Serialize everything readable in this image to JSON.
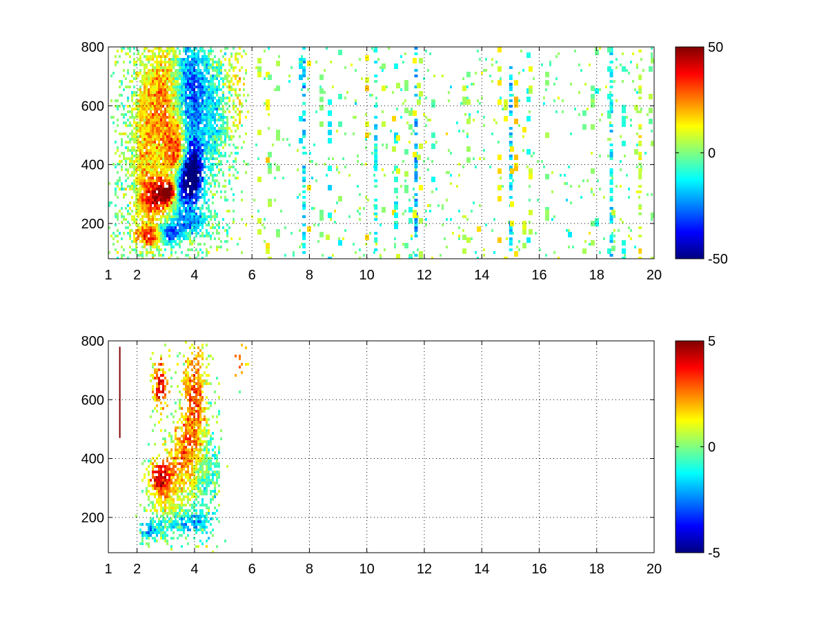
{
  "chart_data": [
    {
      "type": "heatmap",
      "title": "",
      "xlabel": "",
      "ylabel": "",
      "xlim": [
        1,
        20
      ],
      "ylim": [
        80,
        800
      ],
      "xticks": [
        1,
        2,
        4,
        6,
        8,
        10,
        12,
        14,
        16,
        18,
        20
      ],
      "yticks": [
        200,
        400,
        600,
        800
      ],
      "grid": true,
      "colormap": "jet",
      "colorbar": {
        "range": [
          -50,
          50
        ],
        "ticks": [
          -50,
          0,
          50
        ]
      },
      "blobs": [
        {
          "x": 2.5,
          "y": 160,
          "value": 35,
          "sx": 0.35,
          "sy": 25
        },
        {
          "x": 3.1,
          "y": 165,
          "value": -40,
          "sx": 0.3,
          "sy": 20
        },
        {
          "x": 3.8,
          "y": 200,
          "value": -20,
          "sx": 0.5,
          "sy": 30
        },
        {
          "x": 2.7,
          "y": 290,
          "value": 40,
          "sx": 0.35,
          "sy": 40
        },
        {
          "x": 3.1,
          "y": 310,
          "value": 45,
          "sx": 0.2,
          "sy": 25
        },
        {
          "x": 3.6,
          "y": 340,
          "value": -50,
          "sx": 0.3,
          "sy": 60
        },
        {
          "x": 4.0,
          "y": 380,
          "value": -45,
          "sx": 0.25,
          "sy": 70
        },
        {
          "x": 3.4,
          "y": 420,
          "value": 35,
          "sx": 0.25,
          "sy": 70
        },
        {
          "x": 3.0,
          "y": 600,
          "value": 25,
          "sx": 0.4,
          "sy": 150
        },
        {
          "x": 3.9,
          "y": 650,
          "value": -30,
          "sx": 0.4,
          "sy": 130
        },
        {
          "x": 2.3,
          "y": 450,
          "value": 15,
          "sx": 0.3,
          "sy": 200
        },
        {
          "x": 5.5,
          "y": 650,
          "value": 15,
          "sx": 0.3,
          "sy": 100
        },
        {
          "x": 4.8,
          "y": 550,
          "value": -10,
          "sx": 0.3,
          "sy": 120
        }
      ],
      "scatter_columns": [
        {
          "x": 7.8,
          "value": -15
        },
        {
          "x": 10.3,
          "value": -12
        },
        {
          "x": 11.7,
          "value": -20
        },
        {
          "x": 15.0,
          "value": -18
        },
        {
          "x": 18.5,
          "value": -15
        },
        {
          "x": 19.5,
          "value": 10
        }
      ]
    },
    {
      "type": "heatmap",
      "title": "",
      "xlabel": "",
      "ylabel": "",
      "xlim": [
        1,
        20
      ],
      "ylim": [
        80,
        800
      ],
      "xticks": [
        1,
        2,
        4,
        6,
        8,
        10,
        12,
        14,
        16,
        18,
        20
      ],
      "yticks": [
        200,
        400,
        600,
        800
      ],
      "grid": true,
      "colormap": "jet",
      "colorbar": {
        "range": [
          -5,
          5
        ],
        "ticks": [
          -5,
          0,
          5
        ]
      },
      "blobs": [
        {
          "x": 2.5,
          "y": 160,
          "value": -2,
          "sx": 0.35,
          "sy": 25
        },
        {
          "x": 3.0,
          "y": 250,
          "value": 1,
          "sx": 0.4,
          "sy": 60
        },
        {
          "x": 2.8,
          "y": 340,
          "value": 4,
          "sx": 0.3,
          "sy": 40
        },
        {
          "x": 3.6,
          "y": 400,
          "value": 2,
          "sx": 0.4,
          "sy": 80
        },
        {
          "x": 4.0,
          "y": 600,
          "value": 3,
          "sx": 0.3,
          "sy": 150
        },
        {
          "x": 2.8,
          "y": 650,
          "value": 4,
          "sx": 0.2,
          "sy": 60
        },
        {
          "x": 4.4,
          "y": 350,
          "value": -1,
          "sx": 0.4,
          "sy": 100
        },
        {
          "x": 3.8,
          "y": 180,
          "value": -2,
          "sx": 0.5,
          "sy": 30
        },
        {
          "x": 5.6,
          "y": 730,
          "value": 3,
          "sx": 0.15,
          "sy": 50
        }
      ],
      "line_marks": [
        {
          "x": 1.4,
          "y0": 470,
          "y1": 780,
          "value": 5
        }
      ]
    }
  ]
}
